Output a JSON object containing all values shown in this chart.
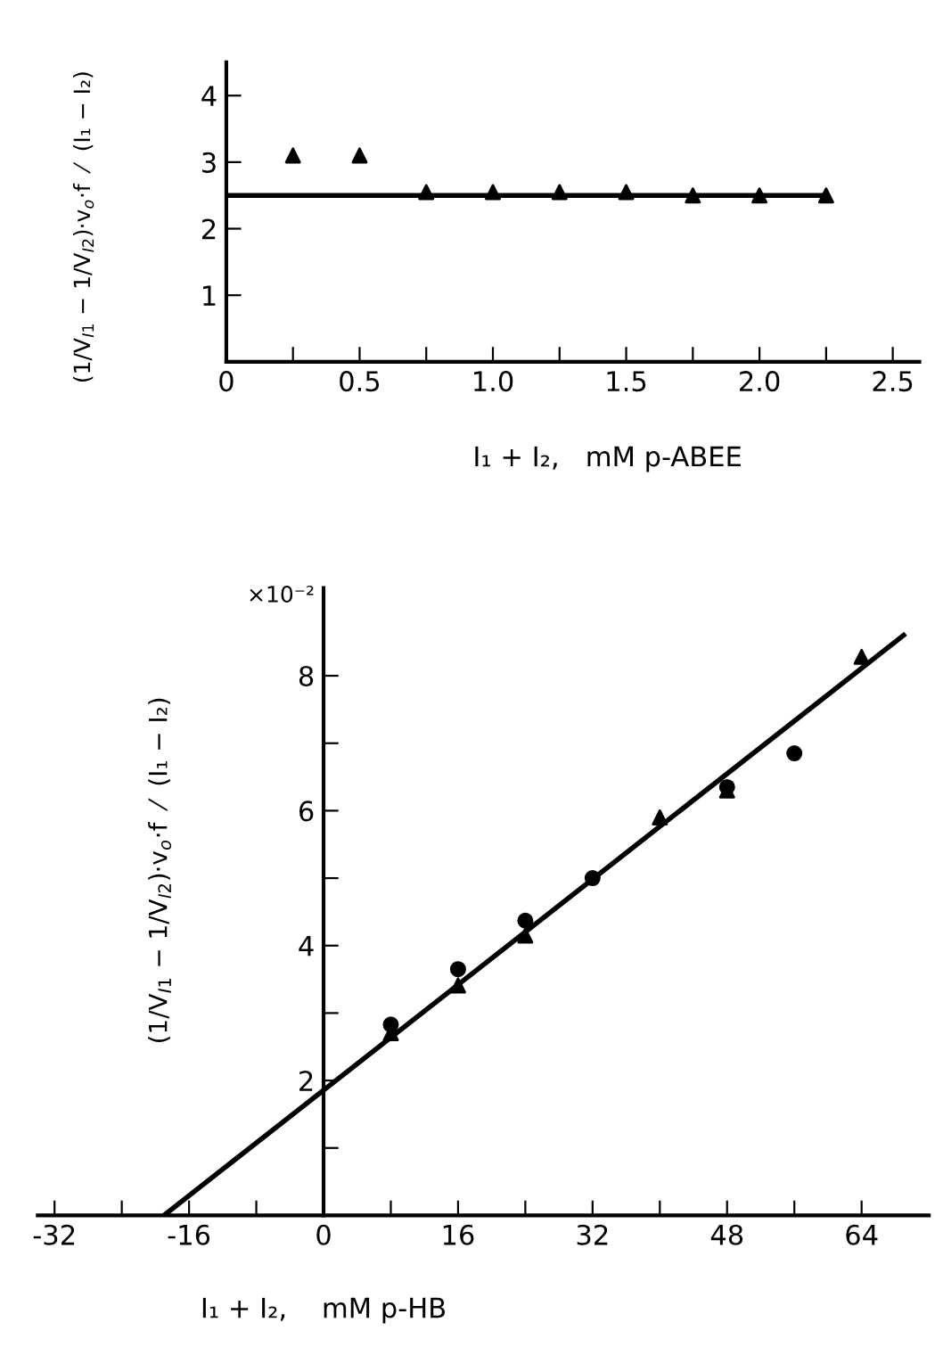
{
  "chart_data": [
    {
      "type": "scatter",
      "xlabel": "I₁ + I₂,   mM p-ABEE",
      "ylabel": "(1/V$_{I1}$ − 1/V$_{I2}$)·v$_{o}$·f  ⁄  (I₁ − I₂)",
      "xlim": [
        0,
        2.6
      ],
      "ylim": [
        0,
        4.5
      ],
      "xticks": [
        0,
        {
          "value": 0.25,
          "label": null
        },
        {
          "value": 0.5,
          "label": "0.5"
        },
        {
          "value": 0.75,
          "label": null
        },
        {
          "value": 1.0,
          "label": "1.0"
        },
        {
          "value": 1.25,
          "label": null
        },
        {
          "value": 1.5,
          "label": "1.5"
        },
        {
          "value": 1.75,
          "label": null
        },
        {
          "value": 2.0,
          "label": "2.0"
        },
        {
          "value": 2.25,
          "label": null
        },
        {
          "value": 2.5,
          "label": "2.5"
        }
      ],
      "yticks": [
        1,
        2,
        3,
        4
      ],
      "grid": false,
      "series": [
        {
          "marker": "triangle",
          "color": "#000000",
          "x": [
            0.25,
            0.5,
            0.75,
            1.0,
            1.25,
            1.5,
            1.75,
            2.0,
            2.25
          ],
          "values": [
            3.1,
            3.1,
            2.55,
            2.55,
            2.55,
            2.55,
            2.5,
            2.5,
            2.5
          ]
        },
        {
          "type": "line",
          "marker": "none",
          "line_style": "solid",
          "color": "#000000",
          "x": [
            0,
            2.25
          ],
          "values": [
            2.5,
            2.5
          ]
        }
      ]
    },
    {
      "type": "scatter",
      "xlabel": "I₁ + I₂,    mM p-HB",
      "ylabel": "(1/V$_{I1}$ − 1/V$_{I2}$)·v$_{o}$·f  ⁄  (I₁ − I₂)",
      "annotations": [
        "×10⁻²"
      ],
      "xlim": [
        -34,
        72
      ],
      "ylim": [
        0,
        9.3
      ],
      "xticks": [
        -32,
        {
          "value": -24,
          "label": null
        },
        -16,
        {
          "value": -8,
          "label": null
        },
        0,
        {
          "value": 8,
          "label": null
        },
        16,
        {
          "value": 24,
          "label": null
        },
        32,
        {
          "value": 40,
          "label": null
        },
        48,
        {
          "value": 56,
          "label": null
        },
        64
      ],
      "yticks": [
        {
          "value": 1,
          "label": null
        },
        2,
        {
          "value": 3,
          "label": null
        },
        4,
        {
          "value": 5,
          "label": null
        },
        6,
        {
          "value": 7,
          "label": null
        },
        8
      ],
      "grid": false,
      "series": [
        {
          "marker": "circle",
          "color": "#000000",
          "x": [
            8,
            16,
            24,
            32,
            48,
            56
          ],
          "values": [
            2.83,
            3.65,
            4.37,
            5.0,
            6.35,
            6.85
          ]
        },
        {
          "marker": "triangle",
          "color": "#000000",
          "x": [
            8,
            16,
            24,
            40,
            48,
            64
          ],
          "values": [
            2.7,
            3.41,
            4.15,
            5.9,
            6.3,
            8.28
          ]
        },
        {
          "type": "line",
          "marker": "none",
          "line_style": "solid",
          "color": "#000000",
          "x": [
            -19,
            69
          ],
          "values": [
            0,
            8.6
          ]
        }
      ]
    }
  ]
}
